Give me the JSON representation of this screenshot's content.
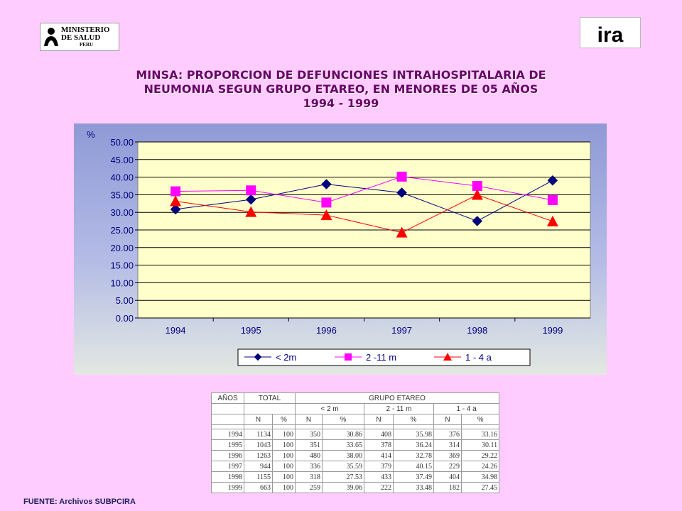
{
  "logos": {
    "left": {
      "line1": "MINISTERIO",
      "line2": "DE SALUD",
      "line3": "PERU"
    },
    "right": {
      "text": "ira"
    }
  },
  "title": {
    "line1": "MINSA: PROPORCION DE DEFUNCIONES INTRAHOSPITALARIA DE",
    "line2": "NEUMONIA SEGUN GRUPO ETAREO, EN MENORES DE 05 AÑOS",
    "line3": "1994 - 1999"
  },
  "chart_data": {
    "type": "line",
    "ylabel": "%",
    "ylim": [
      0,
      50
    ],
    "yticks": [
      "0.00",
      "5.00",
      "10.00",
      "15.00",
      "20.00",
      "25.00",
      "30.00",
      "35.00",
      "40.00",
      "45.00",
      "50.00"
    ],
    "categories": [
      "1994",
      "1995",
      "1996",
      "1997",
      "1998",
      "1999"
    ],
    "series": [
      {
        "name": "< 2m",
        "color": "#000080",
        "marker": "diamond",
        "values": [
          30.86,
          33.65,
          38.0,
          35.59,
          27.53,
          39.06
        ]
      },
      {
        "name": "2 -11 m",
        "color": "#ff00ff",
        "marker": "square",
        "values": [
          35.98,
          36.24,
          32.78,
          40.15,
          37.49,
          33.48
        ]
      },
      {
        "name": "1 - 4 a",
        "color": "#ff0000",
        "marker": "triangle",
        "values": [
          33.16,
          30.11,
          29.22,
          24.26,
          34.98,
          27.45
        ]
      }
    ],
    "legend_position": "bottom",
    "plot_area_color": "#ffffcc",
    "grid": true
  },
  "table": {
    "years_label": "AÑOS",
    "total_label": "TOTAL",
    "group_label": "GRUPO ETAREO",
    "subgroups": [
      "< 2 m",
      "2 - 11 m",
      "1 - 4 a"
    ],
    "n_label": "N",
    "pct_label": "%",
    "rows": [
      [
        "1994",
        "1134",
        "100",
        "350",
        "30.86",
        "408",
        "35.98",
        "376",
        "33.16"
      ],
      [
        "1995",
        "1043",
        "100",
        "351",
        "33.65",
        "378",
        "36.24",
        "314",
        "30.11"
      ],
      [
        "1996",
        "1263",
        "100",
        "480",
        "38.00",
        "414",
        "32.78",
        "369",
        "29.22"
      ],
      [
        "1997",
        "944",
        "100",
        "336",
        "35.59",
        "379",
        "40.15",
        "229",
        "24.26"
      ],
      [
        "1998",
        "1155",
        "100",
        "318",
        "27.53",
        "433",
        "37.49",
        "404",
        "34.98"
      ],
      [
        "1999",
        "663",
        "100",
        "259",
        "39.06",
        "222",
        "33.48",
        "182",
        "27.45"
      ]
    ]
  },
  "source": "FUENTE: Archivos SUBPCIRA"
}
